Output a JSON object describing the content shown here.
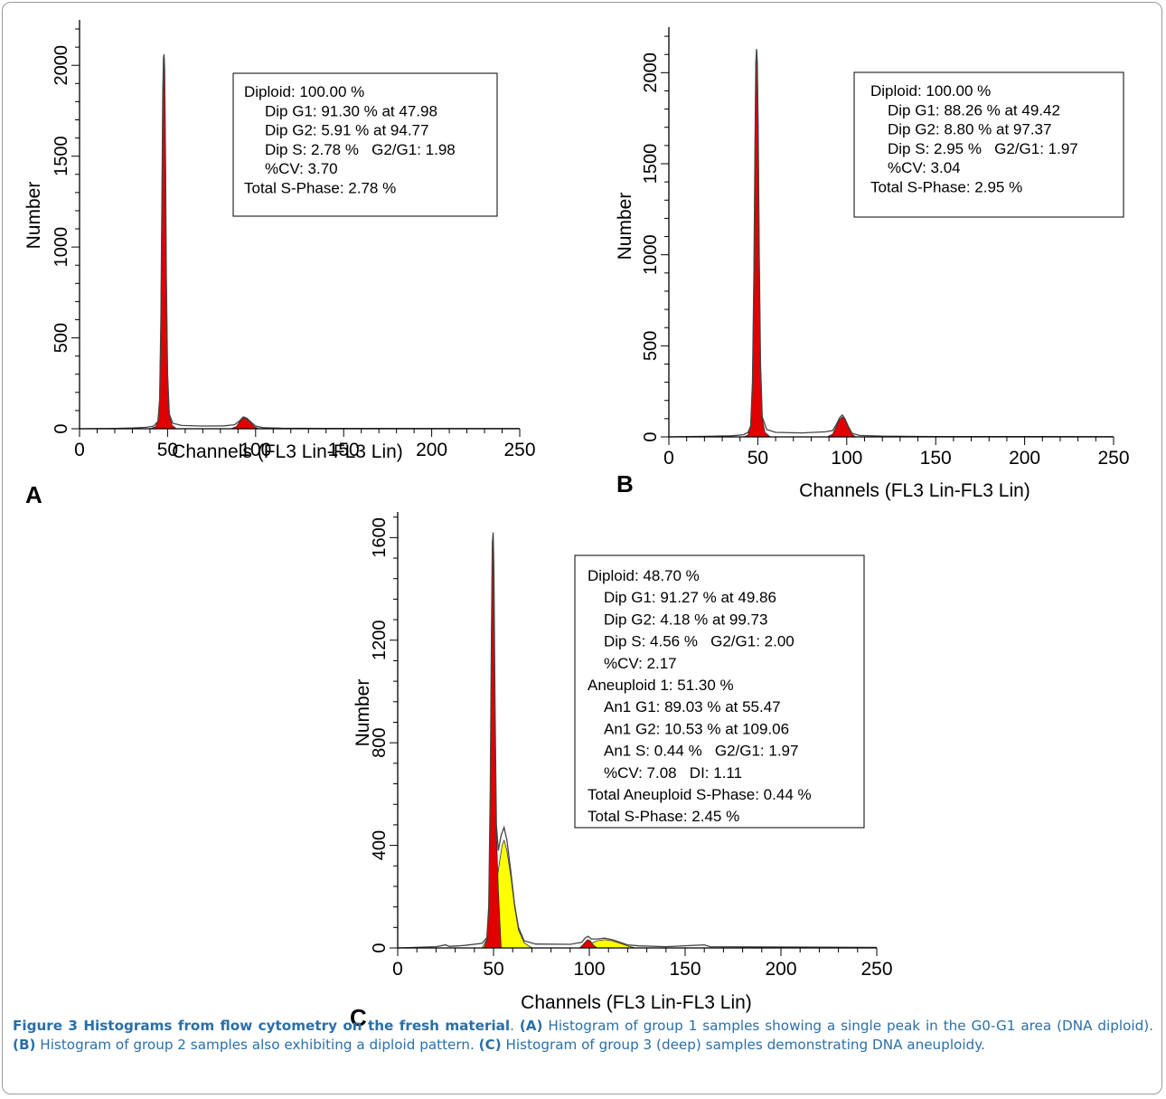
{
  "charts": [
    {
      "panel": "A",
      "chart_data": {
        "type": "area",
        "xlabel": "Channels (FL3 Lin-FL3 Lin)",
        "ylabel": "Number",
        "xlim": [
          0,
          250
        ],
        "ylim": [
          0,
          2250
        ],
        "xticks": [
          0,
          50,
          100,
          150,
          200,
          250
        ],
        "yticks": [
          0,
          500,
          1000,
          1500,
          2000
        ],
        "series": [
          {
            "color": "#e00000",
            "points": [
              [
                40,
                0
              ],
              [
                43,
                10
              ],
              [
                44.5,
                40
              ],
              [
                45.5,
                160
              ],
              [
                46.2,
                600
              ],
              [
                46.8,
                1300
              ],
              [
                47.3,
                1850
              ],
              [
                47.7,
                2040
              ],
              [
                48,
                2060
              ],
              [
                48.3,
                1980
              ],
              [
                48.8,
                1500
              ],
              [
                49.3,
                850
              ],
              [
                50,
                300
              ],
              [
                51,
                80
              ],
              [
                52.5,
                20
              ],
              [
                55,
                0
              ]
            ]
          },
          {
            "color": "#e00000",
            "points": [
              [
                86,
                0
              ],
              [
                89,
                12
              ],
              [
                91,
                40
              ],
              [
                93,
                60
              ],
              [
                95,
                55
              ],
              [
                97,
                35
              ],
              [
                99.5,
                10
              ],
              [
                102,
                0
              ]
            ]
          }
        ],
        "envelope": [
          [
            0,
            0
          ],
          [
            20,
            2
          ],
          [
            30,
            4
          ],
          [
            38,
            8
          ],
          [
            42,
            14
          ],
          [
            44.5,
            40
          ],
          [
            45.5,
            160
          ],
          [
            46.2,
            600
          ],
          [
            46.8,
            1300
          ],
          [
            47.3,
            1850
          ],
          [
            47.7,
            2040
          ],
          [
            48,
            2060
          ],
          [
            48.3,
            1980
          ],
          [
            48.8,
            1500
          ],
          [
            49.3,
            850
          ],
          [
            50,
            300
          ],
          [
            51,
            80
          ],
          [
            53,
            30
          ],
          [
            58,
            18
          ],
          [
            70,
            15
          ],
          [
            82,
            16
          ],
          [
            88,
            22
          ],
          [
            91,
            45
          ],
          [
            93,
            65
          ],
          [
            95,
            58
          ],
          [
            97,
            40
          ],
          [
            100,
            15
          ],
          [
            104,
            6
          ],
          [
            115,
            3
          ],
          [
            140,
            2
          ],
          [
            250,
            1
          ]
        ]
      },
      "stats": [
        "Diploid: 100.00 %",
        "Dip G1: 91.30 % at 47.98",
        "Dip G2: 5.91 % at 94.77",
        "Dip S: 2.78 %   G2/G1: 1.98",
        "%CV: 3.70",
        "Total S-Phase: 2.78 %"
      ]
    },
    {
      "panel": "B",
      "chart_data": {
        "type": "area",
        "xlabel": "Channels (FL3 Lin-FL3 Lin)",
        "ylabel": "Number",
        "xlim": [
          0,
          250
        ],
        "ylim": [
          0,
          2250
        ],
        "xticks": [
          0,
          50,
          100,
          150,
          200,
          250
        ],
        "yticks": [
          0,
          500,
          1000,
          1500,
          2000
        ],
        "series": [
          {
            "color": "#e00000",
            "points": [
              [
                42,
                0
              ],
              [
                44.5,
                10
              ],
              [
                46,
                60
              ],
              [
                47,
                300
              ],
              [
                47.8,
                900
              ],
              [
                48.4,
                1600
              ],
              [
                48.9,
                2050
              ],
              [
                49.3,
                2130
              ],
              [
                49.7,
                2060
              ],
              [
                50.2,
                1700
              ],
              [
                50.8,
                1000
              ],
              [
                51.5,
                400
              ],
              [
                52.5,
                100
              ],
              [
                54,
                25
              ],
              [
                57,
                0
              ]
            ]
          },
          {
            "color": "#e00000",
            "points": [
              [
                89,
                0
              ],
              [
                92,
                15
              ],
              [
                94,
                55
              ],
              [
                96,
                95
              ],
              [
                97.5,
                110
              ],
              [
                99,
                95
              ],
              [
                101,
                50
              ],
              [
                103,
                15
              ],
              [
                105,
                0
              ]
            ]
          }
        ],
        "envelope": [
          [
            0,
            0
          ],
          [
            20,
            3
          ],
          [
            35,
            6
          ],
          [
            42,
            12
          ],
          [
            44.5,
            25
          ],
          [
            46,
            60
          ],
          [
            47,
            300
          ],
          [
            47.8,
            900
          ],
          [
            48.4,
            1600
          ],
          [
            48.9,
            2050
          ],
          [
            49.3,
            2130
          ],
          [
            49.7,
            2060
          ],
          [
            50.2,
            1700
          ],
          [
            50.8,
            1000
          ],
          [
            51.5,
            400
          ],
          [
            52.5,
            110
          ],
          [
            55,
            40
          ],
          [
            60,
            25
          ],
          [
            75,
            22
          ],
          [
            88,
            28
          ],
          [
            92,
            35
          ],
          [
            94,
            65
          ],
          [
            96,
            105
          ],
          [
            97.5,
            120
          ],
          [
            99,
            100
          ],
          [
            101,
            55
          ],
          [
            103,
            20
          ],
          [
            107,
            8
          ],
          [
            120,
            4
          ],
          [
            150,
            2
          ],
          [
            250,
            1
          ]
        ]
      },
      "stats": [
        "Diploid: 100.00 %",
        "Dip G1: 88.26 % at 49.42",
        "Dip G2: 8.80 % at 97.37",
        "Dip S: 2.95 %   G2/G1: 1.97",
        "%CV: 3.04",
        "Total S-Phase: 2.95 %"
      ]
    },
    {
      "panel": "C",
      "chart_data": {
        "type": "area",
        "xlabel": "Channels (FL3 Lin-FL3 Lin)",
        "ylabel": "Number",
        "xlim": [
          0,
          250
        ],
        "ylim": [
          0,
          1700
        ],
        "xticks": [
          0,
          50,
          100,
          150,
          200,
          250
        ],
        "yticks": [
          0,
          400,
          800,
          1200,
          1600
        ],
        "series": [
          {
            "color": "#ffff00",
            "points": [
              [
                44,
                0
              ],
              [
                47,
                40
              ],
              [
                49,
                120
              ],
              [
                51,
                220
              ],
              [
                53,
                330
              ],
              [
                54.5,
                400
              ],
              [
                55.5,
                420
              ],
              [
                57,
                380
              ],
              [
                59,
                280
              ],
              [
                61,
                160
              ],
              [
                63,
                70
              ],
              [
                66,
                20
              ],
              [
                70,
                0
              ]
            ]
          },
          {
            "color": "#e00000",
            "points": [
              [
                45,
                0
              ],
              [
                46.5,
                30
              ],
              [
                47.5,
                150
              ],
              [
                48.3,
                600
              ],
              [
                48.9,
                1200
              ],
              [
                49.4,
                1560
              ],
              [
                49.8,
                1600
              ],
              [
                50.2,
                1450
              ],
              [
                50.8,
                900
              ],
              [
                51.5,
                450
              ],
              [
                52.5,
                230
              ],
              [
                54,
                0
              ]
            ]
          },
          {
            "color": "#ffff00",
            "points": [
              [
                96,
                0
              ],
              [
                100,
                15
              ],
              [
                104,
                28
              ],
              [
                108,
                32
              ],
              [
                112,
                28
              ],
              [
                116,
                18
              ],
              [
                120,
                8
              ],
              [
                124,
                0
              ]
            ]
          },
          {
            "color": "#e00000",
            "points": [
              [
                95,
                0
              ],
              [
                97,
                15
              ],
              [
                99,
                32
              ],
              [
                100.5,
                28
              ],
              [
                102,
                12
              ],
              [
                104,
                0
              ]
            ]
          }
        ],
        "envelope": [
          [
            0,
            0
          ],
          [
            20,
            5
          ],
          [
            25,
            12
          ],
          [
            27,
            6
          ],
          [
            35,
            10
          ],
          [
            44,
            18
          ],
          [
            46.5,
            40
          ],
          [
            47.5,
            160
          ],
          [
            48.3,
            620
          ],
          [
            48.9,
            1220
          ],
          [
            49.4,
            1580
          ],
          [
            49.8,
            1620
          ],
          [
            50.2,
            1480
          ],
          [
            50.8,
            930
          ],
          [
            51.5,
            480
          ],
          [
            52.5,
            380
          ],
          [
            54,
            440
          ],
          [
            55.5,
            470
          ],
          [
            57,
            420
          ],
          [
            59,
            300
          ],
          [
            61,
            170
          ],
          [
            63,
            80
          ],
          [
            66,
            28
          ],
          [
            72,
            15
          ],
          [
            90,
            14
          ],
          [
            96,
            22
          ],
          [
            98,
            40
          ],
          [
            99.5,
            45
          ],
          [
            101,
            35
          ],
          [
            104,
            35
          ],
          [
            108,
            38
          ],
          [
            112,
            32
          ],
          [
            116,
            22
          ],
          [
            120,
            12
          ],
          [
            126,
            8
          ],
          [
            140,
            5
          ],
          [
            160,
            12
          ],
          [
            163,
            5
          ],
          [
            250,
            2
          ]
        ]
      },
      "stats": [
        "Diploid: 48.70 %",
        "Dip G1: 91.27 % at 49.86",
        "Dip G2: 4.18 % at 99.73",
        "Dip S: 4.56 %   G2/G1: 2.00",
        "%CV: 2.17",
        "Aneuploid 1: 51.30 %",
        "An1 G1: 89.03 % at 55.47",
        "An1 G2: 10.53 % at 109.06",
        "An1 S: 0.44 %   G2/G1: 1.97",
        "%CV: 7.08   DI: 1.11",
        "Total Aneuploid S-Phase: 0.44 %",
        "Total S-Phase: 2.45 %"
      ]
    }
  ],
  "caption": {
    "title": "Figure 3 Histograms from flow cytometry on the fresh material",
    "dot": ". ",
    "parts": [
      {
        "label": "(A)",
        "text": " Histogram of group 1 samples showing a single peak in the G0-G1 area (DNA diploid). "
      },
      {
        "label": "(B)",
        "text": " Histogram of group 2 samples also exhibiting a diploid pattern. "
      },
      {
        "label": "(C)",
        "text": " Histogram of group 3 (deep) samples demonstrating DNA aneuploidy."
      }
    ]
  }
}
